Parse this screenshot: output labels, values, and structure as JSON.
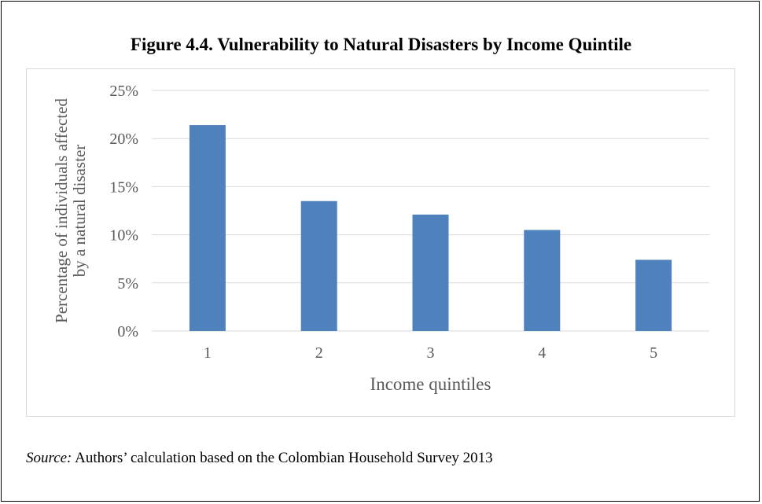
{
  "title": "Figure 4.4. Vulnerability to Natural Disasters by Income Quintile",
  "source": {
    "label": "Source:",
    "text": " Authors’ calculation based on the Colombian Household Survey 2013"
  },
  "colors": {
    "bar": "#4f81bd",
    "grid": "#d9d9d9",
    "axis_text": "#595959"
  },
  "chart_data": {
    "type": "bar",
    "title": "Figure 4.4. Vulnerability to Natural Disasters by Income Quintile",
    "categories": [
      "1",
      "2",
      "3",
      "4",
      "5"
    ],
    "values": [
      21.4,
      13.5,
      12.1,
      10.5,
      7.4
    ],
    "xlabel": "Income quintiles",
    "ylabel": [
      "Percentage of individuals affected",
      "by a natural disaster"
    ],
    "ylim": [
      0,
      25
    ],
    "yticks": [
      "0%",
      "5%",
      "10%",
      "15%",
      "20%",
      "25%"
    ],
    "grid": true,
    "legend": "none"
  }
}
